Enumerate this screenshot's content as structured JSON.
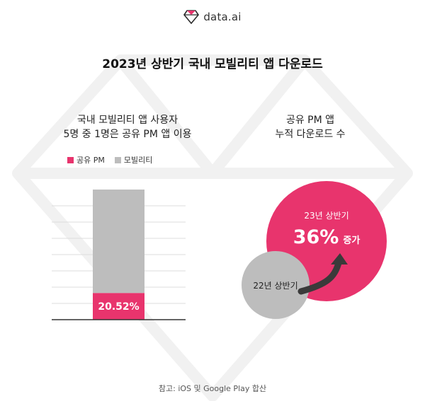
{
  "brand": {
    "name": "data.ai",
    "logo_icon": "diamond-logo-icon"
  },
  "title": "2023년 상반기 국내 모빌리티 앱 다운로드",
  "left_panel": {
    "title_line1": "국내 모빌리티 앱 사용자",
    "title_line2": "5명 중 1명은 공유 PM 앱 이용"
  },
  "right_panel": {
    "title_line1": "공유 PM 앱",
    "title_line2": "누적 다운로드 수",
    "current_label": "23년 상반기",
    "growth_value": "36%",
    "growth_suffix": "증가",
    "previous_label": "22년 상반기"
  },
  "colors": {
    "accent": "#e8346d",
    "gray": "#bdbdbd",
    "arrow": "#3a3a3a"
  },
  "chart_data": {
    "type": "bar",
    "stacked": true,
    "categories": [
      ""
    ],
    "series": [
      {
        "name": "공유 PM",
        "values": [
          20.52
        ],
        "color": "#e8346d"
      },
      {
        "name": "모빌리티",
        "values": [
          79.48
        ],
        "color": "#bdbdbd"
      }
    ],
    "data_labels": [
      "20.52%"
    ],
    "ylim": [
      0,
      100
    ],
    "grid": true,
    "legend": "top"
  },
  "footnote": "참고: iOS 및 Google Play 합산"
}
